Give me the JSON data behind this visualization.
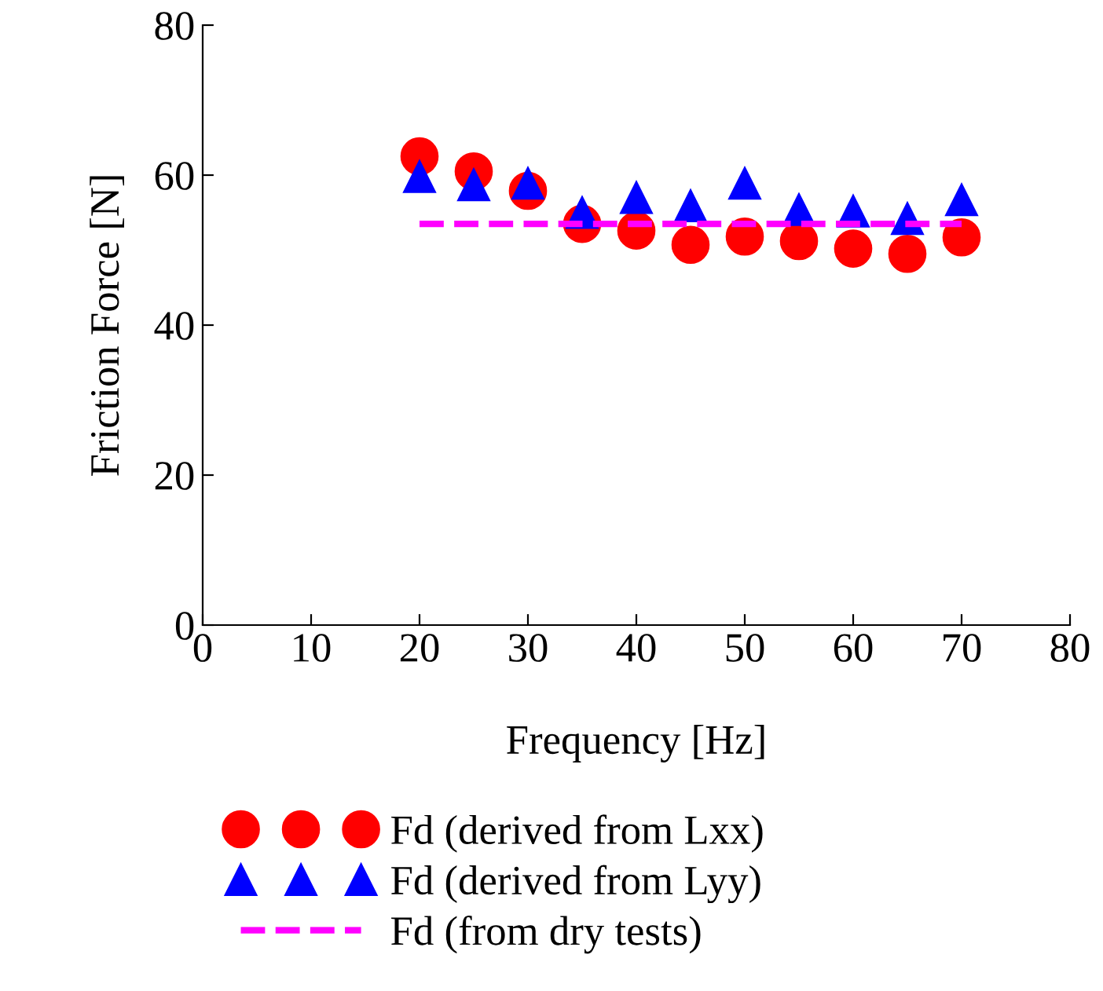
{
  "chart_data": {
    "type": "scatter",
    "xlabel": "Frequency [Hz]",
    "ylabel": "Friction Force [N]",
    "xlim": [
      0,
      80
    ],
    "ylim": [
      0,
      80
    ],
    "xticks": [
      0,
      10,
      20,
      30,
      40,
      50,
      60,
      70,
      80
    ],
    "yticks": [
      0,
      20,
      40,
      60,
      80
    ],
    "grid": false,
    "legend": "bottom",
    "series": [
      {
        "name": "Fd (derived from Lxx)",
        "color": "#ff0000",
        "marker": "circle",
        "x": [
          20,
          25,
          30,
          35,
          40,
          45,
          50,
          55,
          60,
          65,
          70
        ],
        "values": [
          62.5,
          60.5,
          57.9,
          53.5,
          52.6,
          50.7,
          51.8,
          51.2,
          50.2,
          49.5,
          51.7
        ]
      },
      {
        "name": "Fd (derived from Lyy)",
        "color": "#0000ff",
        "marker": "triangle",
        "x": [
          20,
          25,
          30,
          35,
          40,
          45,
          50,
          55,
          60,
          65,
          70
        ],
        "values": [
          59.8,
          58.7,
          58.9,
          55.0,
          57.0,
          55.9,
          58.9,
          55.4,
          55.2,
          54.2,
          56.7
        ]
      },
      {
        "name": "Fd (from dry tests)",
        "type": "line",
        "color": "#ff00ff",
        "line_style": "dashed",
        "marker": "none",
        "x": [
          20,
          70
        ],
        "values": [
          53.5,
          53.5
        ]
      }
    ]
  }
}
